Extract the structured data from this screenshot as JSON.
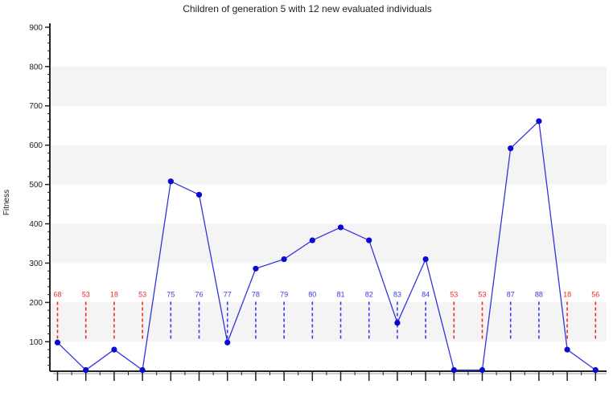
{
  "chart_data": {
    "type": "line",
    "title": "Children of generation 5 with 12 new evaluated individuals",
    "xlabel": "",
    "ylabel": "Fitness",
    "ylim": [
      25,
      910
    ],
    "yticks": [
      100,
      200,
      300,
      400,
      500,
      600,
      700,
      800,
      900
    ],
    "grid": "alternating horizontal bands",
    "legend": "none",
    "series": [
      {
        "values": [
          98,
          28,
          80,
          28,
          508,
          474,
          98,
          286,
          310,
          358,
          391,
          358,
          148,
          310,
          28,
          28,
          592,
          661,
          80,
          28
        ]
      }
    ],
    "markers": [
      {
        "label": "68",
        "kind": "red"
      },
      {
        "label": "53",
        "kind": "red"
      },
      {
        "label": "18",
        "kind": "red"
      },
      {
        "label": "53",
        "kind": "red"
      },
      {
        "label": "75",
        "kind": "blue"
      },
      {
        "label": "76",
        "kind": "blue"
      },
      {
        "label": "77",
        "kind": "blue"
      },
      {
        "label": "78",
        "kind": "blue"
      },
      {
        "label": "79",
        "kind": "blue"
      },
      {
        "label": "80",
        "kind": "blue"
      },
      {
        "label": "81",
        "kind": "blue"
      },
      {
        "label": "82",
        "kind": "blue"
      },
      {
        "label": "83",
        "kind": "blue"
      },
      {
        "label": "84",
        "kind": "blue"
      },
      {
        "label": "53",
        "kind": "red"
      },
      {
        "label": "53",
        "kind": "red"
      },
      {
        "label": "87",
        "kind": "blue"
      },
      {
        "label": "88",
        "kind": "blue"
      },
      {
        "label": "18",
        "kind": "red"
      },
      {
        "label": "56",
        "kind": "red"
      }
    ],
    "colors": {
      "line": "#3333dd",
      "point": "#0a0ad0",
      "red_marker": "#ee2a2a",
      "blue_marker": "#3a3aee",
      "band": "#f4f4f4",
      "axis": "#222222"
    }
  }
}
